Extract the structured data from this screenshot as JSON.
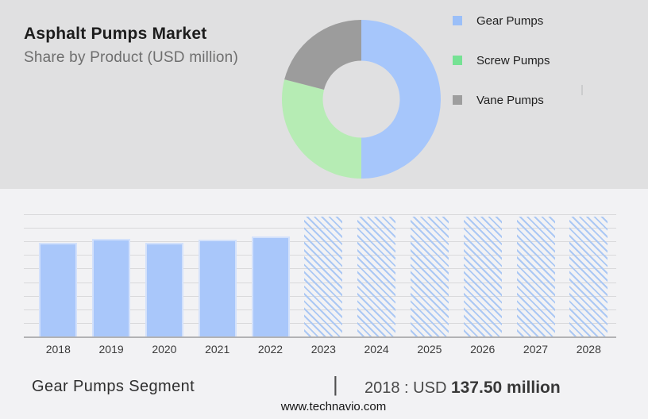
{
  "header": {
    "title": "Asphalt Pumps Market",
    "subtitle": "Share by Product (USD million)"
  },
  "chart_data": [
    {
      "type": "pie",
      "subtype": "donut",
      "legend_position": "right",
      "slices": [
        {
          "label": "Gear Pumps",
          "pct": 50,
          "color": "#a6c6fb",
          "legend_color": "#9bbff8"
        },
        {
          "label": "Screw Pumps",
          "pct": 29,
          "color": "#b6ecb4",
          "legend_color": "#76e294"
        },
        {
          "label": "Vane Pumps",
          "pct": 21,
          "color": "#9c9c9c",
          "legend_color": "#9e9e9e"
        }
      ]
    },
    {
      "type": "bar",
      "categories": [
        "2018",
        "2019",
        "2020",
        "2021",
        "2022",
        "2023",
        "2024",
        "2025",
        "2026",
        "2027",
        "2028"
      ],
      "values": [
        137.5,
        143.5,
        137.5,
        142.5,
        147,
        null,
        null,
        null,
        null,
        null,
        null
      ],
      "forecast_categories": [
        "2023",
        "2024",
        "2025",
        "2026",
        "2027",
        "2028"
      ],
      "unit": "USD million",
      "ylim": [
        0,
        180
      ],
      "grid": true,
      "legend_position": "none",
      "bar_color": "#a9c7fa",
      "forecast_hatch_color": "#abc8f4"
    }
  ],
  "footer": {
    "segment_label": "Gear Pumps Segment",
    "separator": "|",
    "value_prefix": "2018 : USD",
    "value_bold": "137.50 million",
    "website": "www.technavio.com"
  },
  "colors": {
    "top_panel_bg": "#e0e0e1",
    "bottom_panel_bg": "#f2f2f4",
    "gridline": "#d9d9db",
    "axis_line": "#b2b2b4"
  }
}
